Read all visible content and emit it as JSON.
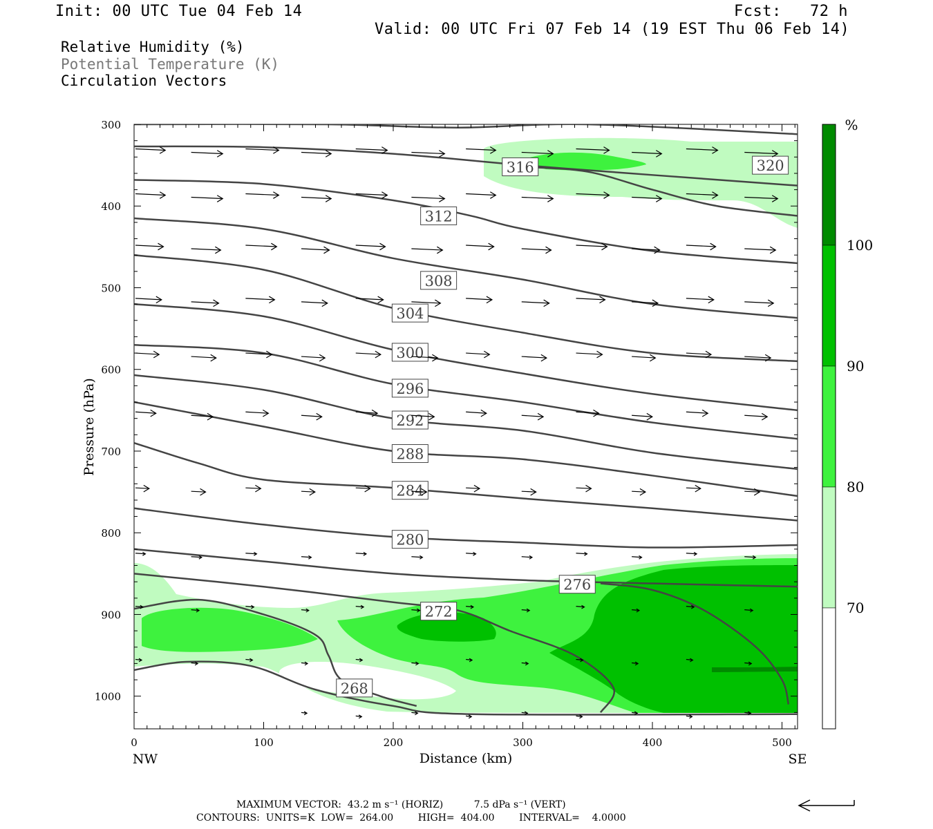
{
  "header": {
    "init": "Init: 00 UTC Tue 04 Feb 14",
    "fcst": "Fcst:   72 h",
    "valid": "Valid: 00 UTC Fri 07 Feb 14 (19 EST Thu 06 Feb 14)"
  },
  "legend": {
    "line1": "Relative Humidity (%)",
    "line2": "Potential Temperature (K)",
    "line3": "Circulation Vectors"
  },
  "footer": {
    "max_vector": "MAXIMUM VECTOR:  43.2 m s⁻¹ (HORIZ)          7.5 dPa s⁻¹ (VERT)",
    "contours": "CONTOURS:  UNITS=K  LOW=  264.00        HIGH=  404.00        INTERVAL=    4.0000"
  },
  "colors": {
    "rh70": "#c0fbc0",
    "rh80": "#3ef23e",
    "rh90": "#00c000",
    "rh100": "#008a00",
    "theta_line": "#444444",
    "vector": "#000000"
  },
  "chart_data": {
    "type": "cross-section",
    "xlabel": "Distance (km)",
    "ylabel": "Pressure (hPa)",
    "xlim": [
      0,
      512
    ],
    "ylim": [
      1040,
      300
    ],
    "x_ticks": [
      "0",
      "100",
      "200",
      "300",
      "400",
      "500"
    ],
    "x_tick_values": [
      0,
      100,
      200,
      300,
      400,
      500
    ],
    "y_ticks": [
      "300",
      "400",
      "500",
      "600",
      "700",
      "800",
      "900",
      "1000"
    ],
    "y_tick_values": [
      300,
      400,
      500,
      600,
      700,
      800,
      900,
      1000
    ],
    "x_end_labels": [
      "NW",
      "SE"
    ],
    "colorbar": {
      "unit": "%",
      "labels": [
        "100",
        "90",
        "80",
        "70"
      ],
      "levels": [
        100,
        90,
        80,
        70
      ],
      "colors": [
        "#008a00",
        "#00c000",
        "#3ef23e",
        "#c0fbc0",
        "#ffffff"
      ]
    },
    "theta_labels": [
      {
        "text": "316",
        "x": 298,
        "p": 352
      },
      {
        "text": "320",
        "x": 491,
        "p": 350
      },
      {
        "text": "312",
        "x": 235,
        "p": 412
      },
      {
        "text": "308",
        "x": 235,
        "p": 491
      },
      {
        "text": "304",
        "x": 213,
        "p": 531
      },
      {
        "text": "300",
        "x": 213,
        "p": 579
      },
      {
        "text": "296",
        "x": 213,
        "p": 623
      },
      {
        "text": "292",
        "x": 213,
        "p": 662
      },
      {
        "text": "288",
        "x": 213,
        "p": 703
      },
      {
        "text": "284",
        "x": 213,
        "p": 748
      },
      {
        "text": "280",
        "x": 213,
        "p": 808
      },
      {
        "text": "276",
        "x": 342,
        "p": 863
      },
      {
        "text": "272",
        "x": 235,
        "p": 896
      },
      {
        "text": "268",
        "x": 170,
        "p": 990
      }
    ],
    "theta_lines": [
      {
        "theta": 320,
        "points": [
          [
            0,
            300
          ],
          [
            150,
            300
          ],
          [
            250,
            304
          ],
          [
            350,
            300
          ],
          [
            512,
            312
          ]
        ]
      },
      {
        "theta": 316,
        "points": [
          [
            0,
            327
          ],
          [
            100,
            328
          ],
          [
            200,
            336
          ],
          [
            300,
            350
          ],
          [
            400,
            362
          ],
          [
            512,
            375
          ]
        ]
      },
      {
        "theta": 316,
        "points": [
          [
            300,
            352
          ],
          [
            350,
            358
          ],
          [
            400,
            380
          ],
          [
            450,
            400
          ],
          [
            512,
            412
          ]
        ]
      },
      {
        "theta": 312,
        "points": [
          [
            0,
            368
          ],
          [
            100,
            373
          ],
          [
            200,
            393
          ],
          [
            260,
            412
          ],
          [
            300,
            428
          ],
          [
            400,
            455
          ],
          [
            512,
            470
          ]
        ]
      },
      {
        "theta": 308,
        "points": [
          [
            0,
            415
          ],
          [
            100,
            428
          ],
          [
            200,
            464
          ],
          [
            300,
            490
          ],
          [
            400,
            520
          ],
          [
            512,
            537
          ]
        ]
      },
      {
        "theta": 304,
        "points": [
          [
            0,
            460
          ],
          [
            100,
            478
          ],
          [
            200,
            525
          ],
          [
            300,
            555
          ],
          [
            400,
            580
          ],
          [
            512,
            590
          ]
        ]
      },
      {
        "theta": 300,
        "points": [
          [
            0,
            520
          ],
          [
            100,
            535
          ],
          [
            200,
            576
          ],
          [
            300,
            605
          ],
          [
            400,
            630
          ],
          [
            512,
            650
          ]
        ]
      },
      {
        "theta": 296,
        "points": [
          [
            0,
            570
          ],
          [
            100,
            580
          ],
          [
            200,
            618
          ],
          [
            300,
            640
          ],
          [
            400,
            665
          ],
          [
            512,
            685
          ]
        ]
      },
      {
        "theta": 292,
        "points": [
          [
            0,
            607
          ],
          [
            100,
            625
          ],
          [
            200,
            660
          ],
          [
            300,
            675
          ],
          [
            400,
            702
          ],
          [
            512,
            722
          ]
        ]
      },
      {
        "theta": 288,
        "points": [
          [
            0,
            640
          ],
          [
            100,
            670
          ],
          [
            200,
            700
          ],
          [
            300,
            710
          ],
          [
            400,
            730
          ],
          [
            512,
            755
          ]
        ]
      },
      {
        "theta": 284,
        "points": [
          [
            0,
            690
          ],
          [
            50,
            715
          ],
          [
            100,
            735
          ],
          [
            200,
            745
          ],
          [
            300,
            758
          ],
          [
            400,
            770
          ],
          [
            512,
            785
          ]
        ]
      },
      {
        "theta": 280,
        "points": [
          [
            0,
            770
          ],
          [
            100,
            790
          ],
          [
            200,
            805
          ],
          [
            300,
            812
          ],
          [
            400,
            818
          ],
          [
            512,
            815
          ]
        ]
      },
      {
        "theta": 276,
        "points": [
          [
            0,
            820
          ],
          [
            100,
            835
          ],
          [
            200,
            850
          ],
          [
            300,
            858
          ],
          [
            400,
            862
          ],
          [
            512,
            866
          ]
        ]
      },
      {
        "theta": 276,
        "points": [
          [
            360,
            862
          ],
          [
            400,
            870
          ],
          [
            440,
            895
          ],
          [
            480,
            940
          ],
          [
            500,
            980
          ],
          [
            505,
            1010
          ]
        ]
      },
      {
        "theta": 272,
        "points": [
          [
            0,
            850
          ],
          [
            100,
            866
          ],
          [
            200,
            885
          ],
          [
            250,
            895
          ],
          [
            290,
            920
          ],
          [
            340,
            950
          ],
          [
            370,
            990
          ],
          [
            360,
            1020
          ]
        ]
      },
      {
        "theta": 268,
        "points": [
          [
            0,
            893
          ],
          [
            50,
            882
          ],
          [
            100,
            900
          ],
          [
            140,
            925
          ],
          [
            150,
            950
          ],
          [
            160,
            980
          ],
          [
            190,
            1000
          ],
          [
            218,
            1012
          ]
        ]
      },
      {
        "theta": 264,
        "points": [
          [
            0,
            968
          ],
          [
            40,
            958
          ],
          [
            90,
            963
          ],
          [
            140,
            992
          ],
          [
            200,
            1012
          ],
          [
            260,
            1022
          ],
          [
            512,
            1022
          ]
        ]
      }
    ]
  }
}
